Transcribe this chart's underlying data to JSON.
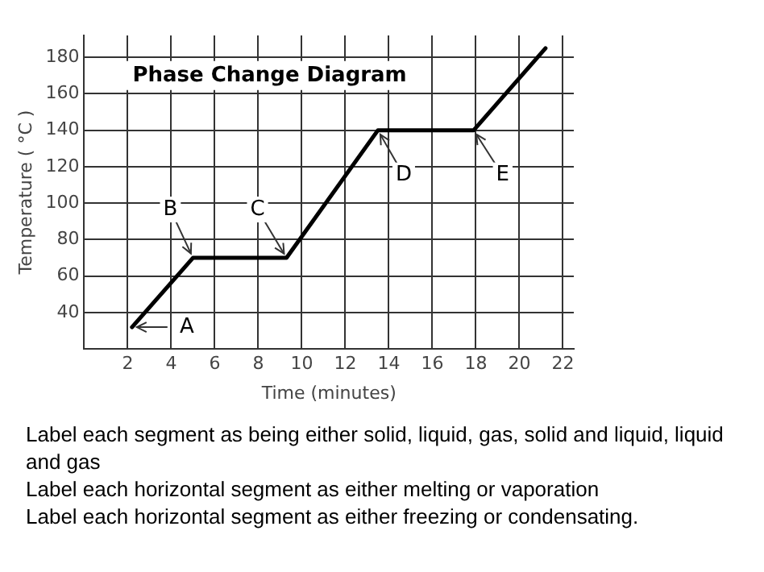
{
  "chart_data": {
    "type": "line",
    "title": "Phase Change Diagram",
    "xlabel": "Time (minutes)",
    "ylabel": "Temperature ( °C )",
    "x": [
      2.2,
      5,
      9.3,
      13.5,
      17.9,
      21.2
    ],
    "series": [
      {
        "color": "#000000",
        "values": [
          32,
          70,
          70,
          140,
          140,
          185
        ]
      }
    ],
    "xlim": [
      0,
      22.5
    ],
    "xticks": [
      2,
      4,
      6,
      8,
      10,
      12,
      14,
      16,
      18,
      20,
      22
    ],
    "ylim": [
      20,
      192
    ],
    "yticks": [
      40,
      60,
      80,
      100,
      120,
      140,
      160,
      180
    ],
    "grid": true,
    "legend": false,
    "marker": "none",
    "line_style": "solid",
    "annotations": [
      {
        "text": "A",
        "x": 2.2,
        "y": 32
      },
      {
        "text": "B",
        "x": 5,
        "y": 70
      },
      {
        "text": "C",
        "x": 9.3,
        "y": 70
      },
      {
        "text": "D",
        "x": 13.5,
        "y": 140
      },
      {
        "text": "E",
        "x": 17.9,
        "y": 140
      },
      "Label each segment as being either  solid, liquid, gas, solid and liquid, liquid and gas",
      "Label each horizontal segment as either melting or vaporation",
      "Label each horizontal segment as either freezing or condensating."
    ]
  }
}
